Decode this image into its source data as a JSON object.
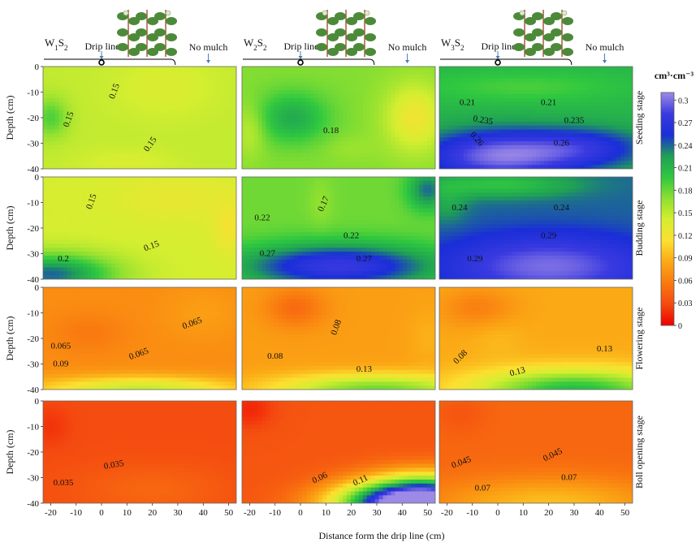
{
  "chart_data": {
    "type": "heatmap",
    "x_title": "Distance form the drip line (cm)",
    "y_title": "Depth (cm)",
    "x_ticks": [
      -20,
      -10,
      0,
      10,
      20,
      30,
      40,
      50
    ],
    "y_ticks": [
      0,
      -10,
      -20,
      -30,
      -40
    ],
    "xlim": [
      -23,
      53
    ],
    "ylim": [
      -40,
      0
    ],
    "treatments": [
      {
        "base": "W",
        "sub1": "1",
        "letter": "S",
        "sub2": "2"
      },
      {
        "base": "W",
        "sub1": "2",
        "letter": "S",
        "sub2": "2"
      },
      {
        "base": "W",
        "sub1": "3",
        "letter": "S",
        "sub2": "2"
      }
    ],
    "header": {
      "drip_label": "Drip line",
      "mulch_label": "No mulch"
    },
    "stages": [
      "Seeding stage",
      "Budding stage",
      "Flowering stage",
      "Boll opening stage"
    ],
    "colorbar": {
      "unit": "cm³·cm⁻³",
      "ticks": [
        0.3,
        0.27,
        0.24,
        0.21,
        0.18,
        0.15,
        0.12,
        0.09,
        0.06,
        0.03,
        0
      ],
      "min": 0,
      "max": 0.31,
      "colors": [
        "#ee0000",
        "#f44a10",
        "#f97a10",
        "#fba915",
        "#fce030",
        "#d4ee30",
        "#8ee030",
        "#2fc840",
        "#1fa055",
        "#1a2ed8",
        "#3a3ae0",
        "#9d8ae6"
      ]
    },
    "panels": [
      {
        "stage": 0,
        "treatment": 0,
        "base": 0.148,
        "blobs": [
          [
            -20,
            -20,
            0.04,
            7,
            8
          ],
          [
            25,
            -8,
            -0.012,
            20,
            12
          ],
          [
            10,
            -38,
            -0.01,
            20,
            6
          ]
        ],
        "labels": [
          {
            "text": "0.15",
            "x": -12,
            "y": -21,
            "rot": -70
          },
          {
            "text": "0.15",
            "x": 6,
            "y": -10,
            "rot": -70
          },
          {
            "text": "0.15",
            "x": 20,
            "y": -31,
            "rot": -55
          }
        ]
      },
      {
        "stage": 0,
        "treatment": 1,
        "base": 0.172,
        "blobs": [
          [
            -3,
            -20,
            0.045,
            14,
            10
          ],
          [
            45,
            -20,
            -0.05,
            12,
            14
          ],
          [
            -20,
            -25,
            -0.025,
            6,
            10
          ],
          [
            20,
            -32,
            -0.008,
            10,
            5
          ]
        ],
        "labels": [
          {
            "text": "0.18",
            "x": 12,
            "y": -26,
            "rot": 0
          }
        ]
      },
      {
        "stage": 0,
        "treatment": 2,
        "base": 0.21,
        "blobs": [
          [
            0,
            -35,
            0.09,
            30,
            10
          ],
          [
            35,
            -32,
            0.05,
            25,
            8
          ],
          [
            10,
            -8,
            -0.02,
            40,
            6
          ]
        ],
        "labels": [
          {
            "text": "0.21",
            "x": -12,
            "y": -15,
            "rot": 0
          },
          {
            "text": "0.21",
            "x": 20,
            "y": -15,
            "rot": 0
          },
          {
            "text": "0.235",
            "x": -6,
            "y": -22,
            "rot": 10
          },
          {
            "text": "0.235",
            "x": 30,
            "y": -22,
            "rot": 0
          },
          {
            "text": "0.26",
            "x": -9,
            "y": -29,
            "rot": 50
          },
          {
            "text": "0.26",
            "x": 25,
            "y": -31,
            "rot": 0
          }
        ]
      },
      {
        "stage": 1,
        "treatment": 0,
        "base": 0.14,
        "blobs": [
          [
            -20,
            -38,
            0.1,
            25,
            8
          ],
          [
            50,
            -20,
            -0.02,
            6,
            10
          ],
          [
            30,
            -8,
            -0.012,
            25,
            10
          ]
        ],
        "labels": [
          {
            "text": "0.15",
            "x": -3,
            "y": -10,
            "rot": -70
          },
          {
            "text": "0.15",
            "x": 20,
            "y": -28,
            "rot": -20
          },
          {
            "text": "0.2",
            "x": -15,
            "y": -33,
            "rot": 0
          }
        ]
      },
      {
        "stage": 1,
        "treatment": 1,
        "base": 0.178,
        "blobs": [
          [
            15,
            -35,
            0.1,
            40,
            9
          ],
          [
            8,
            -10,
            -0.01,
            5,
            10
          ],
          [
            50,
            -5,
            0.06,
            8,
            8
          ]
        ],
        "labels": [
          {
            "text": "0.17",
            "x": 10,
            "y": -11,
            "rot": -65
          },
          {
            "text": "0.22",
            "x": -15,
            "y": -17,
            "rot": 0
          },
          {
            "text": "0.22",
            "x": 20,
            "y": -24,
            "rot": 0
          },
          {
            "text": "0.27",
            "x": -13,
            "y": -31,
            "rot": 0
          },
          {
            "text": "0.27",
            "x": 25,
            "y": -33,
            "rot": 0
          }
        ]
      },
      {
        "stage": 1,
        "treatment": 2,
        "base": 0.24,
        "blobs": [
          [
            20,
            -35,
            0.06,
            40,
            12
          ],
          [
            -20,
            -10,
            -0.02,
            8,
            8
          ],
          [
            0,
            -3,
            -0.04,
            30,
            5
          ]
        ],
        "labels": [
          {
            "text": "0.24",
            "x": -15,
            "y": -13,
            "rot": 0
          },
          {
            "text": "0.24",
            "x": 25,
            "y": -13,
            "rot": 0
          },
          {
            "text": "0.29",
            "x": 20,
            "y": -24,
            "rot": 0
          },
          {
            "text": "0.29",
            "x": -9,
            "y": -33,
            "rot": 0
          }
        ]
      },
      {
        "stage": 2,
        "treatment": 0,
        "base": 0.068,
        "blobs": [
          [
            -5,
            -18,
            -0.012,
            15,
            8
          ],
          [
            15,
            -40,
            0.08,
            40,
            5
          ],
          [
            40,
            -10,
            0.01,
            15,
            10
          ]
        ],
        "labels": [
          {
            "text": "0.065",
            "x": 36,
            "y": -15,
            "rot": -20
          },
          {
            "text": "0.065",
            "x": -16,
            "y": -24,
            "rot": 0
          },
          {
            "text": "0.065",
            "x": 15,
            "y": -27,
            "rot": -20
          },
          {
            "text": "0.09",
            "x": -16,
            "y": -31,
            "rot": 0
          }
        ]
      },
      {
        "stage": 2,
        "treatment": 1,
        "base": 0.078,
        "blobs": [
          [
            -2,
            -8,
            -0.03,
            12,
            8
          ],
          [
            30,
            -40,
            0.1,
            40,
            6
          ],
          [
            50,
            -20,
            0.01,
            8,
            12
          ]
        ],
        "labels": [
          {
            "text": "0.08",
            "x": 15,
            "y": -16,
            "rot": -70
          },
          {
            "text": "0.08",
            "x": -10,
            "y": -28,
            "rot": 0
          },
          {
            "text": "0.13",
            "x": 25,
            "y": -33,
            "rot": 0
          }
        ]
      },
      {
        "stage": 2,
        "treatment": 2,
        "base": 0.085,
        "blobs": [
          [
            -8,
            -8,
            -0.025,
            15,
            8
          ],
          [
            30,
            -40,
            0.12,
            40,
            8
          ],
          [
            0,
            -20,
            0.008,
            10,
            8
          ]
        ],
        "labels": [
          {
            "text": "0.08",
            "x": -14,
            "y": -28,
            "rot": -45
          },
          {
            "text": "0.13",
            "x": 8,
            "y": -34,
            "rot": -15
          },
          {
            "text": "0.13",
            "x": 42,
            "y": -25,
            "rot": 0
          }
        ]
      },
      {
        "stage": 3,
        "treatment": 0,
        "base": 0.03,
        "blobs": [
          [
            20,
            -35,
            0.015,
            30,
            10
          ],
          [
            -20,
            -10,
            -0.01,
            8,
            8
          ]
        ],
        "labels": [
          {
            "text": "0.035",
            "x": 5,
            "y": -26,
            "rot": -10
          },
          {
            "text": "0.035",
            "x": -15,
            "y": -33,
            "rot": 0
          }
        ]
      },
      {
        "stage": 3,
        "treatment": 1,
        "base": 0.035,
        "blobs": [
          [
            50,
            -40,
            0.3,
            25,
            10
          ],
          [
            30,
            -40,
            0.1,
            25,
            8
          ],
          [
            -20,
            -3,
            -0.02,
            10,
            8
          ]
        ],
        "labels": [
          {
            "text": "0.06",
            "x": 8,
            "y": -31,
            "rot": -25
          },
          {
            "text": "0.11",
            "x": 24,
            "y": -32,
            "rot": -25
          }
        ]
      },
      {
        "stage": 3,
        "treatment": 2,
        "base": 0.045,
        "blobs": [
          [
            20,
            -40,
            0.05,
            45,
            10
          ],
          [
            -15,
            -5,
            -0.01,
            10,
            8
          ]
        ],
        "labels": [
          {
            "text": "0.045",
            "x": -14,
            "y": -25,
            "rot": -20
          },
          {
            "text": "0.045",
            "x": 22,
            "y": -22,
            "rot": -25
          },
          {
            "text": "0.07",
            "x": -6,
            "y": -35,
            "rot": 0
          },
          {
            "text": "0.07",
            "x": 28,
            "y": -31,
            "rot": 0
          }
        ]
      }
    ]
  }
}
